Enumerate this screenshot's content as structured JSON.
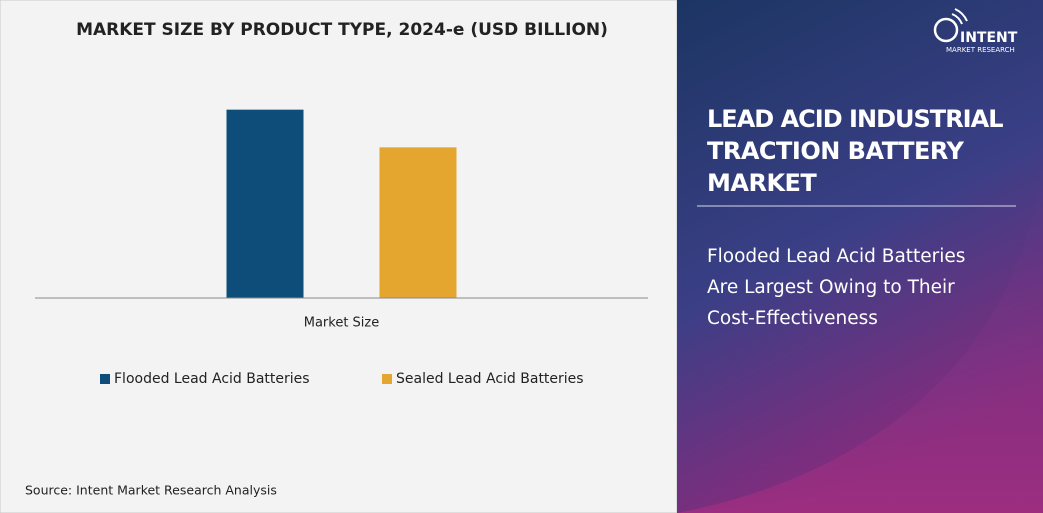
{
  "chart_data": {
    "type": "bar",
    "title": "MARKET SIZE BY PRODUCT TYPE, 2024-e (USD BILLION)",
    "categories": [
      "Market Size"
    ],
    "series": [
      {
        "name": "Flooded Lead Acid Batteries",
        "color": "#0e4d7a",
        "values": [
          2.5
        ]
      },
      {
        "name": "Sealed Lead Acid Batteries",
        "color": "#e5a630",
        "values": [
          2.0
        ]
      }
    ],
    "ylim": [
      0,
      3
    ],
    "source": "Source: Intent Market Research Analysis"
  },
  "side_panel": {
    "logo": {
      "name": "INTENT",
      "tagline": "MARKET RESEARCH"
    },
    "title_lines": [
      "LEAD ACID INDUSTRIAL",
      "TRACTION BATTERY",
      "MARKET"
    ],
    "subtitle_lines": [
      "Flooded Lead Acid Batteries",
      "Are Largest Owing to Their",
      "Cost-Effectiveness"
    ]
  }
}
